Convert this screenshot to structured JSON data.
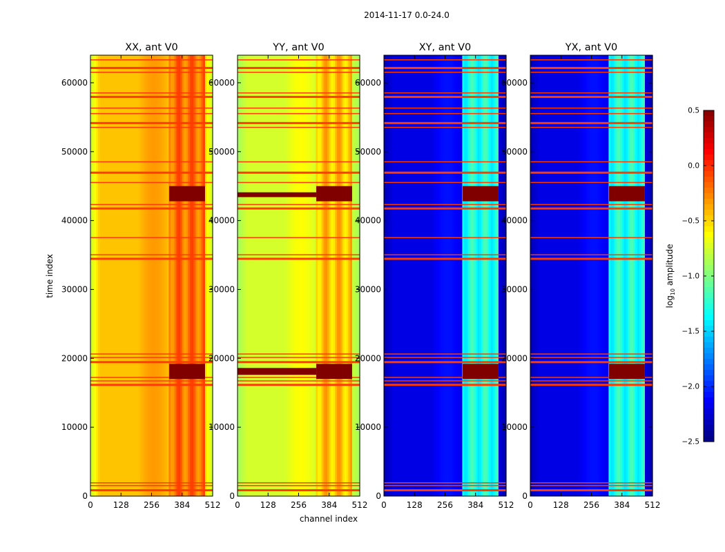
{
  "chart_data": {
    "type": "heatmap",
    "suptitle": "2014-11-17 0.0-24.0",
    "xlabel": "channel index",
    "ylabel": "time index",
    "xlim": [
      0,
      512
    ],
    "ylim": [
      0,
      64000
    ],
    "x_ticks": [
      0,
      128,
      256,
      384,
      512
    ],
    "y_ticks": [
      0,
      10000,
      20000,
      30000,
      40000,
      50000,
      60000
    ],
    "colorbar": {
      "label": "log10 amplitude",
      "label_base": "log",
      "label_sub": "10",
      "label_rest": " amplitude",
      "min": -2.5,
      "max": 0.5,
      "ticks": [
        0.5,
        0.0,
        -0.5,
        -1.0,
        -1.5,
        -2.0,
        -2.5
      ],
      "tick_labels": [
        "0.5",
        "0.0",
        "−0.5",
        "−1.0",
        "−1.5",
        "−2.0",
        "−2.5"
      ],
      "colormap": "jet"
    },
    "panels": [
      {
        "title": "XX, ant V0",
        "base_level": -0.45,
        "edge_level": -0.8,
        "rfi_level": -0.2,
        "rfi_channel_range": [
          330,
          480
        ],
        "saturated_time_ranges": [
          [
            17000,
            19200
          ],
          [
            42800,
            45000
          ]
        ]
      },
      {
        "title": "YY, ant V0",
        "base_level": -0.75,
        "edge_level": -0.9,
        "rfi_level": -0.45,
        "rfi_channel_range": [
          330,
          480
        ],
        "saturated_time_ranges": [
          [
            17000,
            19200
          ],
          [
            17600,
            18600
          ],
          [
            42800,
            45000
          ],
          [
            43400,
            44100
          ]
        ]
      },
      {
        "title": "XY, ant V0",
        "base_level": -2.2,
        "edge_level": -2.35,
        "rfi_level": -1.3,
        "rfi_channel_range": [
          330,
          480
        ],
        "saturated_time_ranges": [
          [
            17000,
            19200
          ],
          [
            42800,
            45000
          ]
        ]
      },
      {
        "title": "YX, ant V0",
        "base_level": -2.2,
        "edge_level": -2.35,
        "rfi_level": -1.3,
        "rfi_channel_range": [
          330,
          480
        ],
        "saturated_time_ranges": [
          [
            17000,
            19200
          ],
          [
            42800,
            45000
          ]
        ]
      }
    ],
    "flagged_time_rows": [
      900,
      1500,
      1900,
      16200,
      16700,
      17200,
      19500,
      20100,
      20600,
      34500,
      35000,
      37500,
      41800,
      42300,
      45500,
      47000,
      48500,
      53500,
      54200,
      55500,
      56300,
      58000,
      58500,
      61500,
      62200,
      63300
    ]
  }
}
